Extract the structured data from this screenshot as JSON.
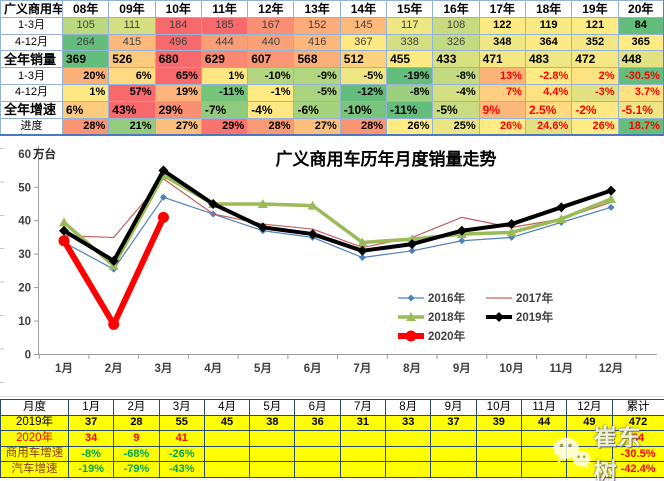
{
  "top_table": {
    "corner_label": "广义商用车",
    "years": [
      "08年",
      "09年",
      "10年",
      "11年",
      "12年",
      "13年",
      "14年",
      "15年",
      "16年",
      "17年",
      "18年",
      "19年",
      "20年"
    ],
    "rows": [
      {
        "label": "1-3月",
        "type": "sub-sales",
        "values": [
          "105",
          "111",
          "184",
          "185",
          "167",
          "152",
          "145",
          "117",
          "108",
          "122",
          "119",
          "121",
          "84"
        ],
        "bg": [
          "#BCD880",
          "#D5DF82",
          "#F8696B",
          "#F8696B",
          "#FA8E72",
          "#FCAC78",
          "#FCBA7B",
          "#EEE683",
          "#C8DB81",
          "#FEEA84",
          "#F7E984",
          "#FFEB84",
          "#63BE7B"
        ]
      },
      {
        "label": "4-12月",
        "type": "sub-sales",
        "values": [
          "264",
          "415",
          "496",
          "444",
          "440",
          "416",
          "367",
          "338",
          "326",
          "348",
          "364",
          "352",
          "365"
        ],
        "bg": [
          "#63BE7B",
          "#FCB97A",
          "#F8696B",
          "#FB9D75",
          "#FBA176",
          "#FCB87A",
          "#FEE983",
          "#D5DF82",
          "#C2DA80",
          "#EFE783",
          "#FEEA84",
          "#F2E783",
          "#FFEB84"
        ]
      },
      {
        "label": "全年销量",
        "type": "main-sales",
        "values": [
          "369",
          "526",
          "680",
          "629",
          "607",
          "568",
          "512",
          "455",
          "433",
          "471",
          "483",
          "472",
          "448"
        ],
        "bg": [
          "#63BE7B",
          "#FDC97D",
          "#F8696B",
          "#F98971",
          "#FA9673",
          "#FBAF78",
          "#FDD27F",
          "#FFE983",
          "#D9E082",
          "#F5E883",
          "#EFE783",
          "#F3E883",
          "#E3E282"
        ]
      },
      {
        "label": "1-3月",
        "type": "sub-growth",
        "values": [
          "20%",
          "6%",
          "65%",
          "1%",
          "-10%",
          "-9%",
          "-5%",
          "-19%",
          "-8%",
          "13%",
          "-2.8%",
          "2%",
          "-30.5%"
        ],
        "bg": [
          "#FBB077",
          "#FEDA81",
          "#F8696B",
          "#FEE683",
          "#B4D680",
          "#B2D680",
          "#EDE683",
          "#63BE7B",
          "#C3DA80",
          "#FBB478",
          "#FFEB84",
          "#FEE383",
          "#63BE7B"
        ]
      },
      {
        "label": "4-12月",
        "type": "sub-growth",
        "values": [
          "1%",
          "57%",
          "19%",
          "-11%",
          "-1%",
          "-5%",
          "-12%",
          "-8%",
          "-4%",
          "7%",
          "4.4%",
          "-3%",
          "3.7%"
        ],
        "bg": [
          "#FEE983",
          "#F8696B",
          "#FCB47A",
          "#74C47C",
          "#FFEB84",
          "#A8D37F",
          "#63BE7B",
          "#9CCF7E",
          "#D4DF82",
          "#FDCF7F",
          "#FEE182",
          "#E2E283",
          "#FEE282"
        ]
      },
      {
        "label": "全年增速",
        "type": "main-growth",
        "values": [
          "6%",
          "43%",
          "29%",
          "-7%",
          "-4%",
          "-6%",
          "-10%",
          "-11%",
          "-5%",
          "9%",
          "2.5%",
          "-2%",
          "-5.1%"
        ],
        "bg": [
          "#FDCB7E",
          "#F8696B",
          "#FA9072",
          "#90CB7D",
          "#FFE883",
          "#A5D27F",
          "#79C47C",
          "#63BE7B",
          "#C9DC81",
          "#FCB87A",
          "#FEDA81",
          "#FEE883",
          "#EEE683"
        ]
      },
      {
        "label": "进度",
        "type": "progress",
        "values": [
          "28%",
          "21%",
          "27%",
          "29%",
          "28%",
          "27%",
          "28%",
          "26%",
          "25%",
          "26%",
          "24.6%",
          "26%",
          "18.7%"
        ],
        "bg": [
          "#FA9473",
          "#94CC7D",
          "#FCBE7B",
          "#F8746D",
          "#FA9A74",
          "#FCBE7B",
          "#FA9473",
          "#FFEB84",
          "#EAE583",
          "#FFEB84",
          "#E1E183",
          "#FFEB84",
          "#63BE7B"
        ]
      }
    ]
  },
  "chart_data": {
    "type": "line",
    "title": "广义商用车历年月度销量走势",
    "ylabel": "万台",
    "ylim": [
      0,
      60
    ],
    "y_ticks": [
      0,
      10,
      20,
      30,
      40,
      50,
      60
    ],
    "x": [
      "1月",
      "2月",
      "3月",
      "4月",
      "5月",
      "6月",
      "7月",
      "8月",
      "9月",
      "10月",
      "11月",
      "12月"
    ],
    "grid": false,
    "legend_position": "inside-bottom-right",
    "series": [
      {
        "name": "2016年",
        "color": "#4F81BD",
        "line_width": 1.2,
        "marker": "diamond",
        "marker_size": 3.5,
        "values": [
          33.5,
          25.5,
          47,
          42,
          37,
          35,
          29,
          31,
          34,
          35,
          39.5,
          44
        ]
      },
      {
        "name": "2017年",
        "color": "#C5615E",
        "line_width": 1.2,
        "marker": "none",
        "marker_size": 0,
        "values": [
          35.5,
          35,
          52.5,
          42,
          39,
          37.5,
          32,
          35,
          41,
          38,
          40.5,
          45.5
        ]
      },
      {
        "name": "2018年",
        "color": "#9BBB59",
        "line_width": 3.5,
        "marker": "triangle",
        "marker_size": 5,
        "values": [
          39.5,
          26.5,
          53.5,
          45,
          45,
          44.5,
          33.5,
          34.5,
          36,
          36.5,
          40.5,
          46.5
        ]
      },
      {
        "name": "2019年",
        "color": "#000000",
        "line_width": 4,
        "marker": "diamond",
        "marker_size": 5,
        "values": [
          37,
          28,
          55,
          45,
          38,
          36,
          31,
          33,
          37,
          39,
          44,
          49
        ]
      },
      {
        "name": "2020年",
        "color": "#FF0000",
        "line_width": 6,
        "marker": "circle",
        "marker_size": 5.5,
        "values": [
          34,
          9,
          41
        ]
      }
    ]
  },
  "bottom_table": {
    "header": [
      "月度",
      "1月",
      "2月",
      "3月",
      "4月",
      "5月",
      "6月",
      "7月",
      "8月",
      "9月",
      "10月",
      "11月",
      "12月",
      "累计"
    ],
    "rows": [
      {
        "label": "2019年",
        "label_color": "#000000",
        "values": [
          "37",
          "28",
          "55",
          "45",
          "38",
          "36",
          "31",
          "33",
          "37",
          "39",
          "44",
          "49",
          "472"
        ],
        "fg": [
          "#000000",
          "#000000",
          "#000000",
          "#000000",
          "#000000",
          "#000000",
          "#000000",
          "#000000",
          "#000000",
          "#000000",
          "#000000",
          "#000000",
          "#000000"
        ]
      },
      {
        "label": "2020年",
        "label_color": "#FF0000",
        "values": [
          "34",
          "9",
          "41",
          "",
          "",
          "",
          "",
          "",
          "",
          "",
          "",
          "",
          "84"
        ],
        "fg": [
          "#FF0000",
          "#FF0000",
          "#FF0000",
          "#FF0000",
          "#FF0000",
          "#FF0000",
          "#FF0000",
          "#FF0000",
          "#FF0000",
          "#FF0000",
          "#FF0000",
          "#FF0000",
          "#FF0000"
        ]
      },
      {
        "label": "商用车增速",
        "label_color": "#8E3B20",
        "values": [
          "-8%",
          "-68%",
          "-26%",
          "",
          "",
          "",
          "",
          "",
          "",
          "",
          "",
          "",
          "-30.5%"
        ],
        "fg": [
          "#00A550",
          "#00A550",
          "#00A550",
          "#00A550",
          "#00A550",
          "#00A550",
          "#00A550",
          "#00A550",
          "#00A550",
          "#00A550",
          "#00A550",
          "#00A550",
          "#FF0000"
        ]
      },
      {
        "label": "汽车增速",
        "label_color": "#8E3B20",
        "values": [
          "-19%",
          "-79%",
          "-43%",
          "",
          "",
          "",
          "",
          "",
          "",
          "",
          "",
          "",
          "-42.4%"
        ],
        "fg": [
          "#00A550",
          "#00A550",
          "#00A550",
          "#00A550",
          "#00A550",
          "#00A550",
          "#00A550",
          "#00A550",
          "#00A550",
          "#00A550",
          "#00A550",
          "#00A550",
          "#FF0000"
        ]
      }
    ]
  },
  "watermark": {
    "icon": "wechat-icon",
    "text": "崔东树"
  }
}
